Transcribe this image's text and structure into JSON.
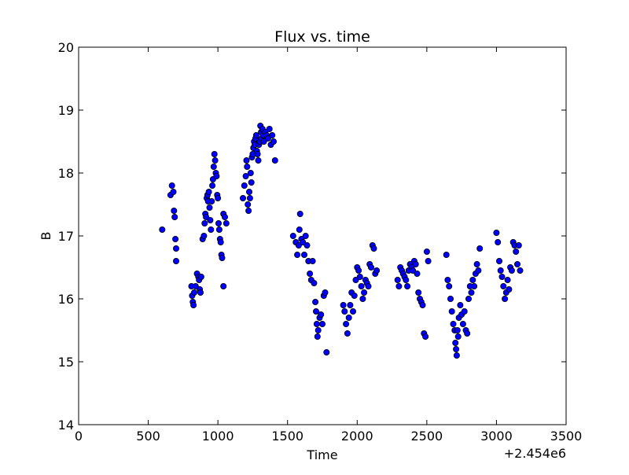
{
  "chart_data": {
    "type": "scatter",
    "title": "Flux vs. time",
    "xlabel": "Time",
    "ylabel": "B",
    "x_offset_label": "+2.454e6",
    "xlim": [
      0,
      3500
    ],
    "ylim": [
      14,
      20
    ],
    "xticks": [
      0,
      500,
      1000,
      1500,
      2000,
      2500,
      3000,
      3500
    ],
    "yticks": [
      14,
      15,
      16,
      17,
      18,
      19,
      20
    ],
    "grid": false,
    "legend": false,
    "marker_color": "#0000ff",
    "marker_edge": "#000000",
    "series": [
      {
        "x": [
          600,
          660,
          670,
          680,
          685,
          690,
          695,
          700,
          700,
          810,
          815,
          820,
          825,
          830,
          840,
          850,
          860,
          865,
          870,
          875,
          880,
          890,
          900,
          905,
          910,
          915,
          920,
          925,
          930,
          935,
          940,
          945,
          950,
          955,
          960,
          965,
          970,
          975,
          980,
          985,
          990,
          995,
          1000,
          1005,
          1010,
          1015,
          1020,
          1025,
          1030,
          1040,
          1040,
          1050,
          1060,
          1180,
          1190,
          1200,
          1205,
          1210,
          1215,
          1220,
          1225,
          1230,
          1235,
          1240,
          1245,
          1250,
          1255,
          1260,
          1265,
          1270,
          1275,
          1280,
          1285,
          1290,
          1295,
          1300,
          1305,
          1310,
          1315,
          1320,
          1325,
          1330,
          1340,
          1350,
          1360,
          1370,
          1380,
          1390,
          1400,
          1410,
          1540,
          1560,
          1570,
          1580,
          1585,
          1590,
          1600,
          1610,
          1620,
          1630,
          1640,
          1650,
          1660,
          1670,
          1680,
          1690,
          1700,
          1705,
          1710,
          1715,
          1720,
          1730,
          1740,
          1750,
          1760,
          1770,
          1780,
          1900,
          1910,
          1920,
          1930,
          1940,
          1950,
          1960,
          1970,
          1980,
          1990,
          2000,
          2010,
          2020,
          2030,
          2040,
          2050,
          2060,
          2070,
          2080,
          2090,
          2100,
          2110,
          2120,
          2130,
          2140,
          2290,
          2300,
          2310,
          2320,
          2330,
          2340,
          2350,
          2360,
          2370,
          2380,
          2390,
          2400,
          2410,
          2420,
          2430,
          2440,
          2450,
          2460,
          2470,
          2480,
          2490,
          2500,
          2510,
          2640,
          2650,
          2660,
          2670,
          2680,
          2690,
          2700,
          2705,
          2710,
          2715,
          2720,
          2725,
          2730,
          2740,
          2750,
          2760,
          2770,
          2780,
          2790,
          2800,
          2810,
          2820,
          2830,
          2840,
          2850,
          2860,
          2870,
          2880,
          3000,
          3010,
          3020,
          3030,
          3040,
          3050,
          3060,
          3070,
          3080,
          3090,
          3100,
          3110,
          3120,
          3130,
          3140,
          3150,
          3160,
          3170
        ],
        "y": [
          17.1,
          17.65,
          17.8,
          17.7,
          17.4,
          17.3,
          16.95,
          16.8,
          16.6,
          16.2,
          16.05,
          15.95,
          15.9,
          16.1,
          16.2,
          16.4,
          16.35,
          16.3,
          16.15,
          16.1,
          16.35,
          16.95,
          17.0,
          17.2,
          17.35,
          17.3,
          17.6,
          17.65,
          17.55,
          17.7,
          17.45,
          17.25,
          17.1,
          17.55,
          17.8,
          17.9,
          18.1,
          18.3,
          18.2,
          18.0,
          17.95,
          17.65,
          17.6,
          17.2,
          17.1,
          16.95,
          16.9,
          16.7,
          16.65,
          17.35,
          16.2,
          17.3,
          17.2,
          17.6,
          17.8,
          17.95,
          18.2,
          18.1,
          17.5,
          17.4,
          17.7,
          17.6,
          18.0,
          17.85,
          18.25,
          18.3,
          18.4,
          18.5,
          18.45,
          18.55,
          18.6,
          18.35,
          18.3,
          18.2,
          18.45,
          18.5,
          18.75,
          18.65,
          18.55,
          18.7,
          18.6,
          18.5,
          18.65,
          18.6,
          18.55,
          18.7,
          18.45,
          18.6,
          18.5,
          18.2,
          17.0,
          16.9,
          16.7,
          16.85,
          17.1,
          17.35,
          16.95,
          16.9,
          16.7,
          17.0,
          16.85,
          16.6,
          16.4,
          16.3,
          16.6,
          16.25,
          15.95,
          15.8,
          15.6,
          15.4,
          15.5,
          15.7,
          15.75,
          15.6,
          16.05,
          16.1,
          15.15,
          15.9,
          15.8,
          15.6,
          15.45,
          15.7,
          15.9,
          16.1,
          15.8,
          16.05,
          16.3,
          16.5,
          16.45,
          16.35,
          16.2,
          16.0,
          16.1,
          16.3,
          16.25,
          16.2,
          16.55,
          16.5,
          16.85,
          16.8,
          16.4,
          16.45,
          16.3,
          16.2,
          16.5,
          16.45,
          16.4,
          16.35,
          16.3,
          16.2,
          16.45,
          16.55,
          16.5,
          16.45,
          16.6,
          16.55,
          16.4,
          16.1,
          16.0,
          15.95,
          15.9,
          15.45,
          15.4,
          16.75,
          16.6,
          16.7,
          16.3,
          16.2,
          16.0,
          15.8,
          15.6,
          15.5,
          15.3,
          15.2,
          15.1,
          15.5,
          15.4,
          15.7,
          15.9,
          15.75,
          15.6,
          15.8,
          15.5,
          15.45,
          16.0,
          16.2,
          16.1,
          16.3,
          16.2,
          16.4,
          16.55,
          16.45,
          16.8,
          17.05,
          16.9,
          16.6,
          16.45,
          16.35,
          16.2,
          16.0,
          16.1,
          16.3,
          16.15,
          16.5,
          16.45,
          16.9,
          16.85,
          16.75,
          16.55,
          16.85,
          16.45
        ]
      }
    ]
  }
}
